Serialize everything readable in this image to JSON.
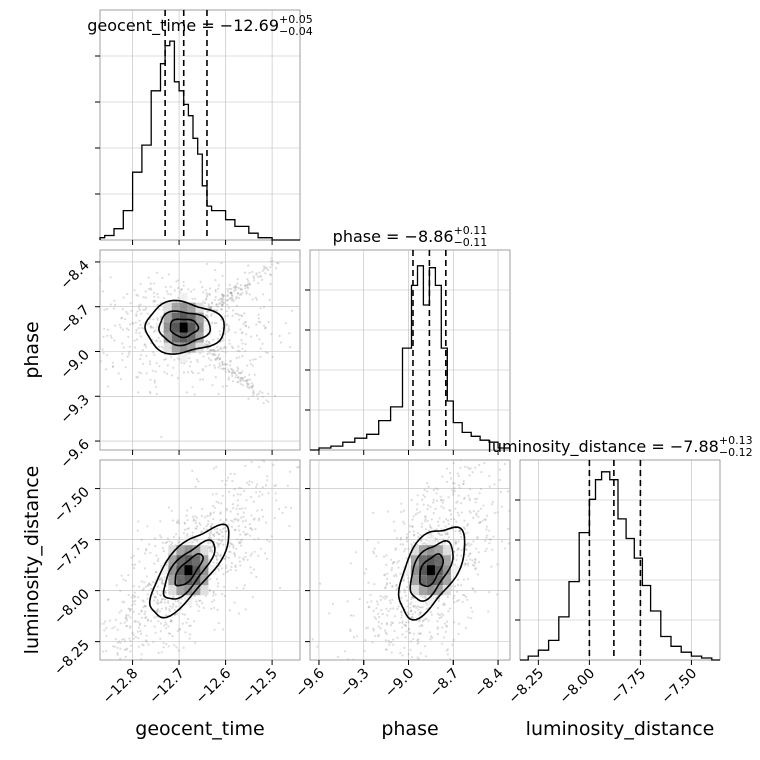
{
  "chart_data": {
    "type": "corner",
    "parameters": [
      "geocent_time",
      "phase",
      "luminosity_distance"
    ],
    "titles": [
      {
        "param": "geocent_time",
        "median": "−12.69",
        "plus": "+0.05",
        "minus": "−0.04"
      },
      {
        "param": "phase",
        "median": "−8.86",
        "plus": "+0.11",
        "minus": "−0.11"
      },
      {
        "param": "luminosity_distance",
        "median": "−7.88",
        "plus": "+0.13",
        "minus": "−0.12"
      }
    ],
    "ranges": {
      "geocent_time": [
        -12.87,
        -12.44
      ],
      "phase": [
        -9.66,
        -8.32
      ],
      "luminosity_distance": [
        -8.34,
        -7.36
      ]
    },
    "ticks": {
      "geocent_time": [
        -12.8,
        -12.7,
        -12.6,
        -12.5
      ],
      "phase": [
        -9.6,
        -9.3,
        -9.0,
        -8.7,
        -8.4
      ],
      "luminosity_distance": [
        -8.25,
        -8.0,
        -7.75,
        -7.5
      ]
    },
    "tick_labels": {
      "geocent_time": [
        "−12.8",
        "−12.7",
        "−12.6",
        "−12.5"
      ],
      "phase": [
        "−9.6",
        "−9.3",
        "−9.0",
        "−8.7",
        "−8.4"
      ],
      "luminosity_distance": [
        "−8.25",
        "−8.00",
        "−7.75",
        "−7.50"
      ]
    },
    "quantiles": {
      "geocent_time": [
        -12.73,
        -12.69,
        -12.64
      ],
      "phase": [
        -8.97,
        -8.86,
        -8.75
      ],
      "luminosity_distance": [
        -8.0,
        -7.88,
        -7.75
      ]
    },
    "histograms": {
      "geocent_time": {
        "edges": [
          -12.87,
          -12.86,
          -12.84,
          -12.82,
          -12.8,
          -12.78,
          -12.76,
          -12.74,
          -12.73,
          -12.72,
          -12.71,
          -12.7,
          -12.69,
          -12.68,
          -12.67,
          -12.66,
          -12.65,
          -12.64,
          -12.63,
          -12.6,
          -12.58,
          -12.55,
          -12.53,
          -12.5,
          -12.48,
          -12.44
        ],
        "values": [
          0.01,
          0.02,
          0.05,
          0.13,
          0.3,
          0.42,
          0.66,
          0.78,
          0.86,
          0.88,
          0.7,
          0.66,
          0.6,
          0.55,
          0.45,
          0.38,
          0.24,
          0.15,
          0.13,
          0.09,
          0.06,
          0.03,
          0.01,
          0.0,
          0.0
        ]
      },
      "phase": {
        "edges": [
          -9.66,
          -9.6,
          -9.52,
          -9.44,
          -9.36,
          -9.28,
          -9.2,
          -9.12,
          -9.04,
          -8.98,
          -8.94,
          -8.9,
          -8.86,
          -8.82,
          -8.78,
          -8.74,
          -8.7,
          -8.64,
          -8.58,
          -8.52,
          -8.46,
          -8.4,
          -8.32
        ],
        "values": [
          0.0,
          0.01,
          0.02,
          0.04,
          0.06,
          0.08,
          0.15,
          0.22,
          0.52,
          0.84,
          0.94,
          0.74,
          0.93,
          0.84,
          0.52,
          0.25,
          0.14,
          0.09,
          0.07,
          0.05,
          0.04,
          0.01
        ]
      },
      "luminosity_distance": {
        "edges": [
          -8.34,
          -8.3,
          -8.25,
          -8.2,
          -8.15,
          -8.1,
          -8.05,
          -8.0,
          -7.97,
          -7.94,
          -7.9,
          -7.86,
          -7.82,
          -7.78,
          -7.74,
          -7.7,
          -7.65,
          -7.6,
          -7.55,
          -7.5,
          -7.45,
          -7.4,
          -7.36
        ],
        "values": [
          0.0,
          0.02,
          0.05,
          0.1,
          0.22,
          0.4,
          0.65,
          0.82,
          0.92,
          0.96,
          0.92,
          0.72,
          0.62,
          0.52,
          0.38,
          0.25,
          0.12,
          0.07,
          0.04,
          0.02,
          0.01,
          0.0
        ]
      }
    },
    "blobs": [
      {
        "pair": [
          "geocent_time",
          "phase"
        ],
        "cx": -12.69,
        "cy": -8.84,
        "sx": 0.05,
        "sy": 0.1,
        "rho": 0.0
      },
      {
        "pair": [
          "geocent_time",
          "luminosity_distance"
        ],
        "cx": -12.68,
        "cy": -7.9,
        "sx": 0.05,
        "sy": 0.13,
        "rho": 0.75
      },
      {
        "pair": [
          "phase",
          "luminosity_distance"
        ],
        "cx": -8.85,
        "cy": -7.9,
        "sx": 0.13,
        "sy": 0.13,
        "rho": 0.55
      }
    ],
    "grid": true,
    "legend": "none"
  }
}
